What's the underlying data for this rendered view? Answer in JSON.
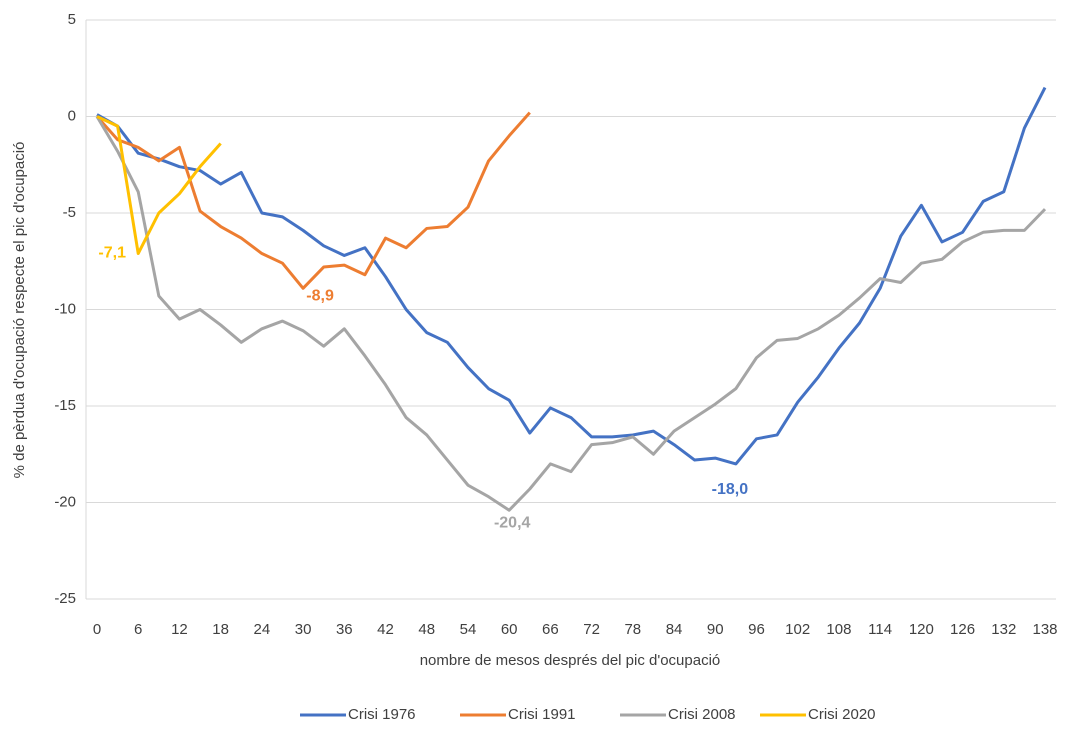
{
  "chart_data": {
    "type": "line",
    "xlabel": "nombre de mesos després del pic d'ocupació",
    "ylabel": "% de pèrdua d'ocupació respecte el pic d'ocupació",
    "xlim": [
      -1.6,
      139.6
    ],
    "xticks": [
      0,
      6,
      12,
      18,
      24,
      30,
      36,
      42,
      48,
      54,
      60,
      66,
      72,
      78,
      84,
      90,
      96,
      102,
      108,
      114,
      120,
      126,
      132,
      138
    ],
    "ylim": [
      -25,
      5
    ],
    "yticks": [
      -25,
      -20,
      -15,
      -10,
      -5,
      0,
      5
    ],
    "grid": true,
    "legend": "bottom",
    "series": [
      {
        "name": "Crisi 1976",
        "color": "#4472c4",
        "x": [
          0,
          3,
          6,
          9,
          12,
          15,
          18,
          21,
          24,
          27,
          30,
          33,
          36,
          39,
          42,
          45,
          48,
          51,
          54,
          57,
          60,
          63,
          66,
          69,
          72,
          75,
          78,
          81,
          84,
          87,
          90,
          93,
          96,
          99,
          102,
          105,
          108,
          111,
          114,
          117,
          120,
          123,
          126,
          129,
          132,
          135,
          138
        ],
        "values": [
          0.1,
          -0.5,
          -1.9,
          -2.2,
          -2.6,
          -2.8,
          -3.5,
          -2.9,
          -5.0,
          -5.2,
          -5.9,
          -6.7,
          -7.2,
          -6.8,
          -8.3,
          -10.0,
          -11.2,
          -11.7,
          -13.0,
          -14.1,
          -14.7,
          -16.4,
          -15.1,
          -15.6,
          -16.6,
          -16.6,
          -16.5,
          -16.3,
          -17.0,
          -17.8,
          -17.7,
          -18.0,
          -16.7,
          -16.5,
          -14.8,
          -13.5,
          -12.0,
          -10.7,
          -8.9,
          -6.2,
          -4.6,
          -6.5,
          -6.0,
          -4.4,
          -3.9,
          -0.6,
          1.5
        ],
        "value_labels": [
          null,
          null,
          null,
          null,
          null,
          null,
          null,
          null,
          null,
          null,
          null,
          null,
          null,
          null,
          null,
          null,
          null,
          null,
          null,
          null,
          null,
          null,
          null,
          null,
          null,
          null,
          null,
          null,
          null,
          null,
          null,
          "-18,0",
          null,
          null,
          null,
          null,
          null,
          null,
          null,
          null,
          null,
          null,
          null,
          null,
          null,
          null,
          null
        ]
      },
      {
        "name": "Crisi 1991",
        "color": "#ed7d31",
        "x": [
          0,
          3,
          6,
          9,
          12,
          15,
          18,
          21,
          24,
          27,
          30,
          33,
          36,
          39,
          42,
          45,
          48,
          51,
          54,
          57,
          60,
          63
        ],
        "values": [
          0,
          -1.2,
          -1.6,
          -2.3,
          -1.6,
          -4.9,
          -5.7,
          -6.3,
          -7.1,
          -7.6,
          -8.9,
          -7.8,
          -7.7,
          -8.2,
          -6.3,
          -6.8,
          -5.8,
          -5.7,
          -4.7,
          -2.3,
          -1.0,
          0.2
        ],
        "value_labels": [
          null,
          null,
          null,
          null,
          null,
          null,
          null,
          null,
          null,
          null,
          "-8,9",
          null,
          null,
          null,
          null,
          null,
          null,
          null,
          null,
          null,
          null,
          null
        ]
      },
      {
        "name": "Crisi 2008",
        "color": "#a5a5a5",
        "x": [
          0,
          3,
          6,
          9,
          12,
          15,
          18,
          21,
          24,
          27,
          30,
          33,
          36,
          39,
          42,
          45,
          48,
          51,
          54,
          57,
          60,
          63,
          66,
          69,
          72,
          75,
          78,
          81,
          84,
          87,
          90,
          93,
          96,
          99,
          102,
          105,
          108,
          111,
          114,
          117,
          120,
          123,
          126,
          129,
          132,
          135,
          138
        ],
        "values": [
          0,
          -1.8,
          -3.9,
          -9.3,
          -10.5,
          -10.0,
          -10.8,
          -11.7,
          -11.0,
          -10.6,
          -11.1,
          -11.9,
          -11.0,
          -12.4,
          -13.9,
          -15.6,
          -16.5,
          -17.8,
          -19.1,
          -19.7,
          -20.4,
          -19.3,
          -18.0,
          -18.4,
          -17.0,
          -16.9,
          -16.6,
          -17.5,
          -16.3,
          -15.6,
          -14.9,
          -14.1,
          -12.5,
          -11.6,
          -11.5,
          -11.0,
          -10.3,
          -9.4,
          -8.4,
          -8.6,
          -7.6,
          -7.4,
          -6.5,
          -6.0,
          -5.9,
          -5.9,
          -4.8
        ],
        "value_labels": [
          null,
          null,
          null,
          null,
          null,
          null,
          null,
          null,
          null,
          null,
          null,
          null,
          null,
          null,
          null,
          null,
          null,
          null,
          null,
          null,
          "-20,4",
          null,
          null,
          null,
          null,
          null,
          null,
          null,
          null,
          null,
          null,
          null,
          null,
          null,
          null,
          null,
          null,
          null,
          null,
          null,
          null,
          null,
          null,
          null,
          null,
          null,
          null
        ]
      },
      {
        "name": "Crisi 2020",
        "color": "#ffc000",
        "x": [
          0,
          3,
          6,
          9,
          12,
          15,
          18
        ],
        "values": [
          0,
          -0.5,
          -7.1,
          -5.0,
          -4.0,
          -2.6,
          -1.4
        ],
        "value_labels": [
          null,
          null,
          "-7,1",
          null,
          null,
          null,
          null
        ]
      }
    ]
  }
}
